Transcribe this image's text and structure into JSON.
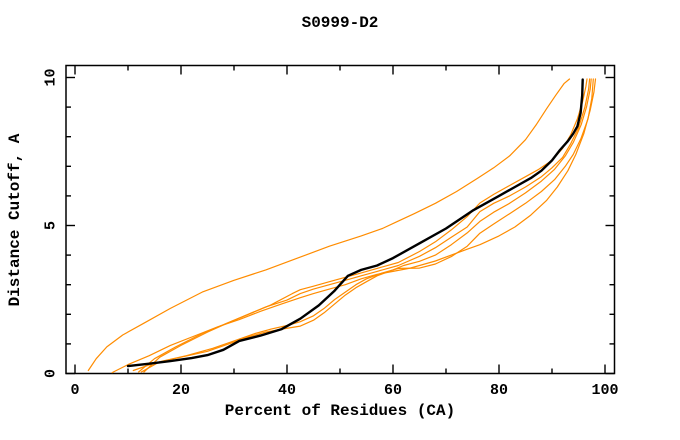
{
  "colors": {
    "background": "#ffffff",
    "frame": "#000000",
    "orange_curve": "#ff8c00",
    "black_curve": "#000000"
  },
  "chart_data": {
    "type": "line",
    "title": "S0999-D2",
    "xlabel": "Percent of Residues (CA)",
    "ylabel": "Distance Cutoff, A",
    "xlim": [
      0,
      100
    ],
    "ylim": [
      0,
      10
    ],
    "x_major_ticks": [
      0,
      20,
      40,
      60,
      80,
      100
    ],
    "x_tick_labels": [
      "0",
      "20",
      "40",
      "60",
      "80",
      "100"
    ],
    "x_minor_step": 10,
    "y_major_ticks": [
      0,
      5,
      10
    ],
    "y_tick_labels": [
      "0",
      "5",
      "10"
    ],
    "y_minor_step": 1,
    "grid": false,
    "legend": "none",
    "series": [
      {
        "name": "orange-outlier",
        "color": "#ff8c00",
        "width": 1.2,
        "points": [
          [
            2.5,
            0.1
          ],
          [
            4,
            0.5
          ],
          [
            6,
            0.9
          ],
          [
            9,
            1.3
          ],
          [
            13,
            1.7
          ],
          [
            18,
            2.2
          ],
          [
            24,
            2.75
          ],
          [
            30,
            3.15
          ],
          [
            36,
            3.5
          ],
          [
            42,
            3.9
          ],
          [
            48,
            4.3
          ],
          [
            54,
            4.65
          ],
          [
            58,
            4.9
          ],
          [
            61,
            5.15
          ],
          [
            64,
            5.4
          ],
          [
            68,
            5.75
          ],
          [
            72,
            6.15
          ],
          [
            76,
            6.6
          ],
          [
            79,
            6.95
          ],
          [
            82,
            7.35
          ],
          [
            85,
            7.9
          ],
          [
            87,
            8.4
          ],
          [
            89,
            8.95
          ],
          [
            90.7,
            9.4
          ],
          [
            92.3,
            9.8
          ],
          [
            93.3,
            9.95
          ]
        ]
      },
      {
        "name": "orange-1",
        "color": "#ff8c00",
        "width": 1.2,
        "points": [
          [
            7,
            0.03
          ],
          [
            10,
            0.3
          ],
          [
            14,
            0.6
          ],
          [
            18,
            0.95
          ],
          [
            23,
            1.3
          ],
          [
            27,
            1.58
          ],
          [
            31,
            1.82
          ],
          [
            35,
            2.1
          ],
          [
            39,
            2.35
          ],
          [
            42.5,
            2.56
          ],
          [
            45,
            2.7
          ],
          [
            48,
            2.85
          ],
          [
            51,
            3.0
          ],
          [
            54,
            3.2
          ],
          [
            57,
            3.35
          ],
          [
            60,
            3.45
          ],
          [
            63,
            3.55
          ],
          [
            65,
            3.65
          ],
          [
            68,
            3.8
          ],
          [
            71,
            4.0
          ],
          [
            74,
            4.2
          ],
          [
            76.4,
            4.35
          ],
          [
            80,
            4.65
          ],
          [
            83,
            4.95
          ],
          [
            86,
            5.35
          ],
          [
            89,
            5.85
          ],
          [
            91,
            6.3
          ],
          [
            93,
            6.85
          ],
          [
            94.5,
            7.4
          ],
          [
            96,
            8.1
          ],
          [
            97.2,
            8.9
          ],
          [
            97.9,
            9.5
          ],
          [
            98.2,
            9.95
          ]
        ]
      },
      {
        "name": "orange-2",
        "color": "#ff8c00",
        "width": 1.2,
        "points": [
          [
            12,
            0.05
          ],
          [
            15,
            0.5
          ],
          [
            19,
            0.9
          ],
          [
            24,
            1.35
          ],
          [
            28,
            1.65
          ],
          [
            32,
            1.95
          ],
          [
            36,
            2.25
          ],
          [
            40,
            2.48
          ],
          [
            42.5,
            2.7
          ],
          [
            45,
            2.85
          ],
          [
            48,
            3.0
          ],
          [
            51,
            3.15
          ],
          [
            54,
            3.3
          ],
          [
            57,
            3.45
          ],
          [
            61,
            3.65
          ],
          [
            65,
            3.96
          ],
          [
            68,
            4.25
          ],
          [
            71,
            4.6
          ],
          [
            74,
            4.95
          ],
          [
            76.4,
            5.47
          ],
          [
            79,
            5.75
          ],
          [
            82,
            6.0
          ],
          [
            85,
            6.3
          ],
          [
            88,
            6.65
          ],
          [
            90,
            6.95
          ],
          [
            92,
            7.3
          ],
          [
            93.5,
            7.75
          ],
          [
            95,
            8.3
          ],
          [
            96.2,
            9.0
          ],
          [
            96.9,
            9.6
          ],
          [
            97.1,
            9.95
          ]
        ]
      },
      {
        "name": "orange-3",
        "color": "#ff8c00",
        "width": 1.2,
        "points": [
          [
            13,
            0.05
          ],
          [
            16,
            0.55
          ],
          [
            20,
            0.95
          ],
          [
            25,
            1.4
          ],
          [
            29,
            1.72
          ],
          [
            33,
            2.02
          ],
          [
            37,
            2.32
          ],
          [
            41,
            2.7
          ],
          [
            42.5,
            2.83
          ],
          [
            45,
            2.95
          ],
          [
            48,
            3.1
          ],
          [
            51,
            3.25
          ],
          [
            54,
            3.4
          ],
          [
            57,
            3.55
          ],
          [
            61,
            3.75
          ],
          [
            65,
            4.12
          ],
          [
            68,
            4.45
          ],
          [
            71,
            4.85
          ],
          [
            74,
            5.3
          ],
          [
            76.4,
            5.76
          ],
          [
            79,
            6.05
          ],
          [
            82,
            6.35
          ],
          [
            85,
            6.65
          ],
          [
            87.5,
            6.9
          ],
          [
            90,
            7.2
          ],
          [
            92,
            7.6
          ],
          [
            93.5,
            8.05
          ],
          [
            94.8,
            8.6
          ],
          [
            95.8,
            9.2
          ],
          [
            96.4,
            9.7
          ],
          [
            96.6,
            9.95
          ]
        ]
      },
      {
        "name": "orange-4",
        "color": "#ff8c00",
        "width": 1.2,
        "points": [
          [
            11,
            0.1
          ],
          [
            15,
            0.35
          ],
          [
            20,
            0.55
          ],
          [
            25,
            0.75
          ],
          [
            29,
            1.0
          ],
          [
            33,
            1.25
          ],
          [
            36,
            1.4
          ],
          [
            39,
            1.5
          ],
          [
            42.5,
            1.6
          ],
          [
            45,
            1.8
          ],
          [
            47,
            2.05
          ],
          [
            49,
            2.35
          ],
          [
            51,
            2.65
          ],
          [
            53,
            2.9
          ],
          [
            55,
            3.1
          ],
          [
            57,
            3.3
          ],
          [
            60,
            3.5
          ],
          [
            62,
            3.65
          ],
          [
            65,
            3.79
          ],
          [
            68,
            4.0
          ],
          [
            71,
            4.35
          ],
          [
            74,
            4.75
          ],
          [
            76.4,
            5.14
          ],
          [
            79,
            5.45
          ],
          [
            82,
            5.75
          ],
          [
            85,
            6.1
          ],
          [
            88,
            6.5
          ],
          [
            90.5,
            6.9
          ],
          [
            92.5,
            7.35
          ],
          [
            94,
            7.8
          ],
          [
            95.5,
            8.4
          ],
          [
            96.5,
            9.0
          ],
          [
            97.2,
            9.6
          ],
          [
            97.4,
            9.95
          ]
        ]
      },
      {
        "name": "orange-5",
        "color": "#ff8c00",
        "width": 1.2,
        "points": [
          [
            12.5,
            0.05
          ],
          [
            16,
            0.4
          ],
          [
            21,
            0.6
          ],
          [
            26,
            0.85
          ],
          [
            30,
            1.1
          ],
          [
            34,
            1.35
          ],
          [
            37,
            1.5
          ],
          [
            40,
            1.62
          ],
          [
            42.5,
            1.75
          ],
          [
            45,
            1.95
          ],
          [
            47,
            2.2
          ],
          [
            49,
            2.5
          ],
          [
            51,
            2.75
          ],
          [
            53,
            3.0
          ],
          [
            55,
            3.2
          ],
          [
            58,
            3.4
          ],
          [
            61,
            3.55
          ],
          [
            65,
            3.56
          ],
          [
            68,
            3.7
          ],
          [
            71,
            3.95
          ],
          [
            74,
            4.3
          ],
          [
            76.4,
            4.74
          ],
          [
            79,
            5.05
          ],
          [
            82,
            5.4
          ],
          [
            85,
            5.75
          ],
          [
            88,
            6.15
          ],
          [
            90.5,
            6.55
          ],
          [
            92.5,
            7.0
          ],
          [
            94,
            7.4
          ],
          [
            95.5,
            7.95
          ],
          [
            96.8,
            8.6
          ],
          [
            97.5,
            9.3
          ],
          [
            97.8,
            9.95
          ]
        ]
      },
      {
        "name": "black-model",
        "color": "#000000",
        "width": 2.4,
        "points": [
          [
            10,
            0.25
          ],
          [
            14,
            0.33
          ],
          [
            18,
            0.42
          ],
          [
            22,
            0.52
          ],
          [
            25,
            0.62
          ],
          [
            28,
            0.8
          ],
          [
            31,
            1.1
          ],
          [
            35,
            1.28
          ],
          [
            39,
            1.5
          ],
          [
            42.5,
            1.85
          ],
          [
            46,
            2.3
          ],
          [
            49,
            2.8
          ],
          [
            51.5,
            3.3
          ],
          [
            54,
            3.5
          ],
          [
            57,
            3.65
          ],
          [
            60,
            3.9
          ],
          [
            65,
            4.4
          ],
          [
            70,
            4.9
          ],
          [
            75,
            5.5
          ],
          [
            80,
            6.0
          ],
          [
            83,
            6.3
          ],
          [
            86,
            6.6
          ],
          [
            88,
            6.85
          ],
          [
            90,
            7.2
          ],
          [
            91.5,
            7.55
          ],
          [
            93,
            7.85
          ],
          [
            94,
            8.1
          ],
          [
            94.8,
            8.35
          ],
          [
            95.4,
            8.8
          ],
          [
            95.7,
            9.4
          ],
          [
            95.8,
            9.93
          ]
        ]
      }
    ]
  }
}
